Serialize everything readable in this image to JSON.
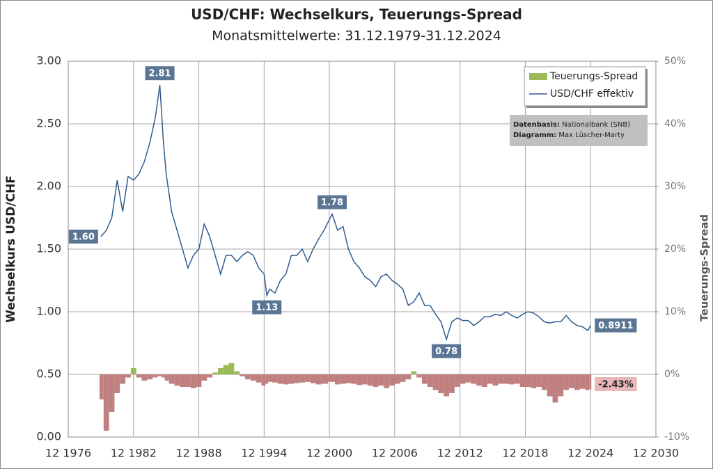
{
  "chart_data": {
    "type": "line",
    "title": "USD/CHF: Wechselkurs,  Teuerungs-Spread",
    "subtitle": "Monatsmittelwerte: 31.12.1979-31.12.2024",
    "y_label": "Wechselkurs USD/CHF",
    "y2_label": "Teuerungs-Spread",
    "source": {
      "label": "Datenbasis:",
      "text": "Nationalbank (SNB)"
    },
    "credit": {
      "label": "Diagramm:",
      "text": "Max Lüscher-Marty"
    },
    "grid": true,
    "legend": "top-right",
    "xlim": [
      "1976-12",
      "2030-12"
    ],
    "xticks": [
      {
        "value": "1976-12",
        "label": "12 1976"
      },
      {
        "value": "1982-12",
        "label": "12 1982"
      },
      {
        "value": "1988-12",
        "label": "12 1988"
      },
      {
        "value": "1994-12",
        "label": "12 1994"
      },
      {
        "value": "2000-12",
        "label": "12 2000"
      },
      {
        "value": "2006-12",
        "label": "12 2006"
      },
      {
        "value": "2012-12",
        "label": "12 2012"
      },
      {
        "value": "2018-12",
        "label": "12 2018"
      },
      {
        "value": "2024-12",
        "label": "12 2024"
      },
      {
        "value": "2030-12",
        "label": "12 2030"
      }
    ],
    "ylim": [
      0,
      3
    ],
    "yticks": [
      {
        "value": 0,
        "label": "0.00"
      },
      {
        "value": 0.5,
        "label": "0.50"
      },
      {
        "value": 1,
        "label": "1.00"
      },
      {
        "value": 1.5,
        "label": "1.50"
      },
      {
        "value": 2,
        "label": "2.00"
      },
      {
        "value": 2.5,
        "label": "2.50"
      },
      {
        "value": 3,
        "label": "3.00"
      }
    ],
    "y2lim": [
      -10,
      50
    ],
    "y2ticks": [
      {
        "value": -10,
        "label": "-10%"
      },
      {
        "value": 0,
        "label": "0%"
      },
      {
        "value": 10,
        "label": "10%"
      },
      {
        "value": 20,
        "label": "20%"
      },
      {
        "value": 30,
        "label": "30%"
      },
      {
        "value": 40,
        "label": "40%"
      },
      {
        "value": 50,
        "label": "50%"
      }
    ],
    "x": [
      "1979-12",
      "1980-06",
      "1980-12",
      "1981-06",
      "1981-12",
      "1982-06",
      "1982-12",
      "1983-06",
      "1983-12",
      "1984-06",
      "1984-12",
      "1985-05",
      "1985-09",
      "1985-12",
      "1986-06",
      "1986-12",
      "1987-06",
      "1987-12",
      "1988-06",
      "1988-12",
      "1989-06",
      "1989-12",
      "1990-06",
      "1990-12",
      "1991-06",
      "1991-12",
      "1992-06",
      "1992-12",
      "1993-06",
      "1993-12",
      "1994-06",
      "1994-12",
      "1995-03",
      "1995-06",
      "1995-12",
      "1996-06",
      "1996-12",
      "1997-06",
      "1997-12",
      "1998-06",
      "1998-12",
      "1999-06",
      "1999-12",
      "2000-06",
      "2001-03",
      "2001-09",
      "2002-03",
      "2002-09",
      "2003-03",
      "2003-09",
      "2004-03",
      "2004-09",
      "2005-03",
      "2005-09",
      "2006-03",
      "2006-09",
      "2007-03",
      "2007-09",
      "2008-03",
      "2008-09",
      "2009-03",
      "2009-09",
      "2010-03",
      "2010-09",
      "2011-03",
      "2011-09",
      "2012-03",
      "2012-09",
      "2013-03",
      "2013-09",
      "2014-03",
      "2014-09",
      "2015-03",
      "2015-09",
      "2016-03",
      "2016-09",
      "2017-03",
      "2017-09",
      "2018-03",
      "2018-09",
      "2019-03",
      "2019-09",
      "2020-03",
      "2020-09",
      "2021-03",
      "2021-09",
      "2022-03",
      "2022-09",
      "2023-03",
      "2023-09",
      "2024-03",
      "2024-09",
      "2024-12"
    ],
    "series": [
      {
        "name": "Teuerungs-Spread",
        "type": "bar",
        "axis": "y2",
        "color": "#9bbb59",
        "negative_color": "#c08080",
        "values": [
          -4,
          -9,
          -6,
          -3,
          -1.5,
          -0.5,
          1,
          -0.5,
          -1,
          -0.8,
          -0.5,
          -0.3,
          -0.5,
          -1,
          -1.5,
          -1.8,
          -2,
          -2,
          -2.2,
          -2,
          -1,
          -0.5,
          0.3,
          1,
          1.5,
          1.8,
          0.5,
          -0.3,
          -0.8,
          -1,
          -1.3,
          -1.8,
          -1.5,
          -1.2,
          -1.3,
          -1.5,
          -1.6,
          -1.5,
          -1.4,
          -1.3,
          -1.2,
          -1.4,
          -1.6,
          -1.5,
          -1.2,
          -1.6,
          -1.5,
          -1.4,
          -1.5,
          -1.7,
          -1.6,
          -1.8,
          -2,
          -1.8,
          -2.2,
          -1.8,
          -1.5,
          -1.2,
          -0.8,
          0.5,
          -0.5,
          -1.5,
          -2,
          -2.5,
          -3,
          -3.5,
          -3,
          -2,
          -1.5,
          -1.3,
          -1.5,
          -1.8,
          -2,
          -1.5,
          -1.8,
          -1.5,
          -1.5,
          -1.6,
          -1.5,
          -2,
          -2,
          -2.2,
          -2,
          -2.5,
          -3.5,
          -4.5,
          -3.5,
          -2.5,
          -2.2,
          -2.5,
          -2.3,
          -2.5,
          -2.43
        ],
        "value_labels": [
          null,
          null,
          null,
          null,
          null,
          null,
          null,
          null,
          null,
          null,
          null,
          null,
          null,
          null,
          null,
          null,
          null,
          null,
          null,
          null,
          null,
          null,
          null,
          null,
          null,
          null,
          null,
          null,
          null,
          null,
          null,
          null,
          null,
          null,
          null,
          null,
          null,
          null,
          null,
          null,
          null,
          null,
          null,
          null,
          null,
          null,
          null,
          null,
          null,
          null,
          null,
          null,
          null,
          null,
          null,
          null,
          null,
          null,
          null,
          null,
          null,
          null,
          null,
          null,
          null,
          null,
          null,
          null,
          null,
          null,
          null,
          null,
          null,
          null,
          null,
          null,
          null,
          null,
          null,
          null,
          null,
          null,
          null,
          null,
          null,
          null,
          null,
          null,
          null,
          null,
          null,
          null,
          "-2.43%"
        ]
      },
      {
        "name": "USD/CHF effektiv",
        "type": "line",
        "color": "#2f5b8f",
        "values": [
          1.6,
          1.65,
          1.75,
          2.05,
          1.8,
          2.08,
          2.05,
          2.1,
          2.2,
          2.35,
          2.55,
          2.81,
          2.35,
          2.1,
          1.8,
          1.65,
          1.5,
          1.35,
          1.45,
          1.5,
          1.7,
          1.6,
          1.45,
          1.3,
          1.45,
          1.45,
          1.4,
          1.45,
          1.48,
          1.45,
          1.35,
          1.3,
          1.13,
          1.18,
          1.15,
          1.25,
          1.3,
          1.45,
          1.45,
          1.5,
          1.4,
          1.5,
          1.58,
          1.65,
          1.78,
          1.65,
          1.68,
          1.5,
          1.4,
          1.35,
          1.28,
          1.25,
          1.2,
          1.28,
          1.3,
          1.25,
          1.22,
          1.18,
          1.05,
          1.08,
          1.15,
          1.05,
          1.05,
          0.98,
          0.92,
          0.78,
          0.92,
          0.95,
          0.93,
          0.93,
          0.89,
          0.92,
          0.96,
          0.96,
          0.98,
          0.97,
          1.0,
          0.97,
          0.95,
          0.98,
          1.0,
          0.99,
          0.96,
          0.92,
          0.91,
          0.92,
          0.92,
          0.97,
          0.92,
          0.89,
          0.88,
          0.85,
          0.8911
        ],
        "value_labels": [
          "1.60",
          null,
          null,
          null,
          null,
          null,
          null,
          null,
          null,
          null,
          null,
          "2.81",
          null,
          null,
          null,
          null,
          null,
          null,
          null,
          null,
          null,
          null,
          null,
          null,
          null,
          null,
          null,
          null,
          null,
          null,
          null,
          null,
          "1.13",
          null,
          null,
          null,
          null,
          null,
          null,
          null,
          null,
          null,
          null,
          null,
          "1.78",
          null,
          null,
          null,
          null,
          null,
          null,
          null,
          null,
          null,
          null,
          null,
          null,
          null,
          null,
          null,
          null,
          null,
          null,
          null,
          null,
          "0.78",
          null,
          null,
          null,
          null,
          null,
          null,
          null,
          null,
          null,
          null,
          null,
          null,
          null,
          null,
          null,
          null,
          null,
          null,
          null,
          null,
          null,
          null,
          null,
          null,
          null,
          null,
          "0.8911"
        ]
      }
    ]
  }
}
